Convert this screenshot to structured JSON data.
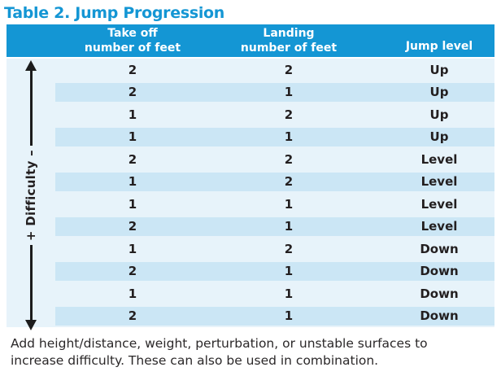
{
  "title": "Table 2. Jump Progression",
  "colors": {
    "accent_blue": "#1496d4",
    "row_light": "#e7f3fa",
    "row_dark": "#cbe6f5",
    "text_dark": "#231f20"
  },
  "difficulty_axis": {
    "label": "+ Difficulty –",
    "icon": "double-headed-vertical-arrow"
  },
  "table": {
    "columns": [
      {
        "line1": "Take off",
        "line2": "number of feet"
      },
      {
        "line1": "Landing",
        "line2": "number of feet"
      },
      {
        "line1": "",
        "line2": "Jump level"
      }
    ],
    "rows": [
      {
        "takeoff": "2",
        "landing": "2",
        "level": "Up"
      },
      {
        "takeoff": "2",
        "landing": "1",
        "level": "Up"
      },
      {
        "takeoff": "1",
        "landing": "2",
        "level": "Up"
      },
      {
        "takeoff": "1",
        "landing": "1",
        "level": "Up"
      },
      {
        "takeoff": "2",
        "landing": "2",
        "level": "Level"
      },
      {
        "takeoff": "1",
        "landing": "2",
        "level": "Level"
      },
      {
        "takeoff": "1",
        "landing": "1",
        "level": "Level"
      },
      {
        "takeoff": "2",
        "landing": "1",
        "level": "Level"
      },
      {
        "takeoff": "1",
        "landing": "2",
        "level": "Down"
      },
      {
        "takeoff": "2",
        "landing": "1",
        "level": "Down"
      },
      {
        "takeoff": "1",
        "landing": "1",
        "level": "Down"
      },
      {
        "takeoff": "2",
        "landing": "1",
        "level": "Down"
      }
    ]
  },
  "note": "Add height/distance, weight, perturbation, or unstable surfaces to increase difficulty. These can also be used in combination."
}
